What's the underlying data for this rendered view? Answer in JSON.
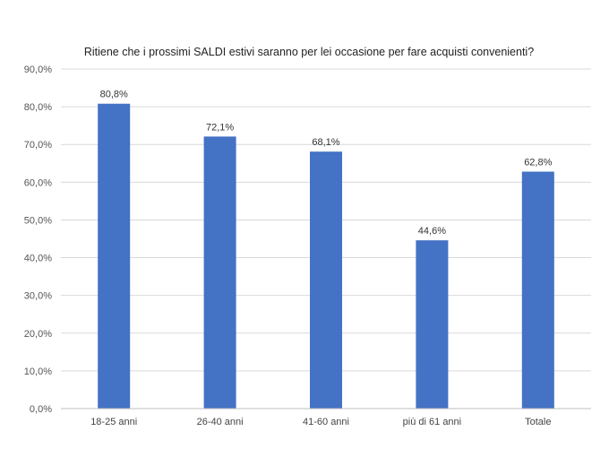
{
  "chart_data": {
    "type": "bar",
    "title": "Ritiene che i prossimi SALDI estivi saranno per lei occasione per fare acquisti convenienti?",
    "categories": [
      "18-25 anni",
      "26-40 anni",
      "41-60 anni",
      "più di 61 anni",
      "Totale"
    ],
    "values": [
      80.8,
      72.1,
      68.1,
      44.6,
      62.8
    ],
    "value_labels": [
      "80,8%",
      "72,1%",
      "68,1%",
      "44,6%",
      "62,8%"
    ],
    "ylim": [
      0,
      90
    ],
    "yticks": [
      0,
      10,
      20,
      30,
      40,
      50,
      60,
      70,
      80,
      90
    ],
    "ytick_labels": [
      "0,0%",
      "10,0%",
      "20,0%",
      "30,0%",
      "40,0%",
      "50,0%",
      "60,0%",
      "70,0%",
      "80,0%",
      "90,0%"
    ],
    "xlabel": "",
    "ylabel": "",
    "grid": true,
    "legend": "none",
    "bar_color": "#4472C4",
    "grid_color": "#D9D9D9"
  }
}
